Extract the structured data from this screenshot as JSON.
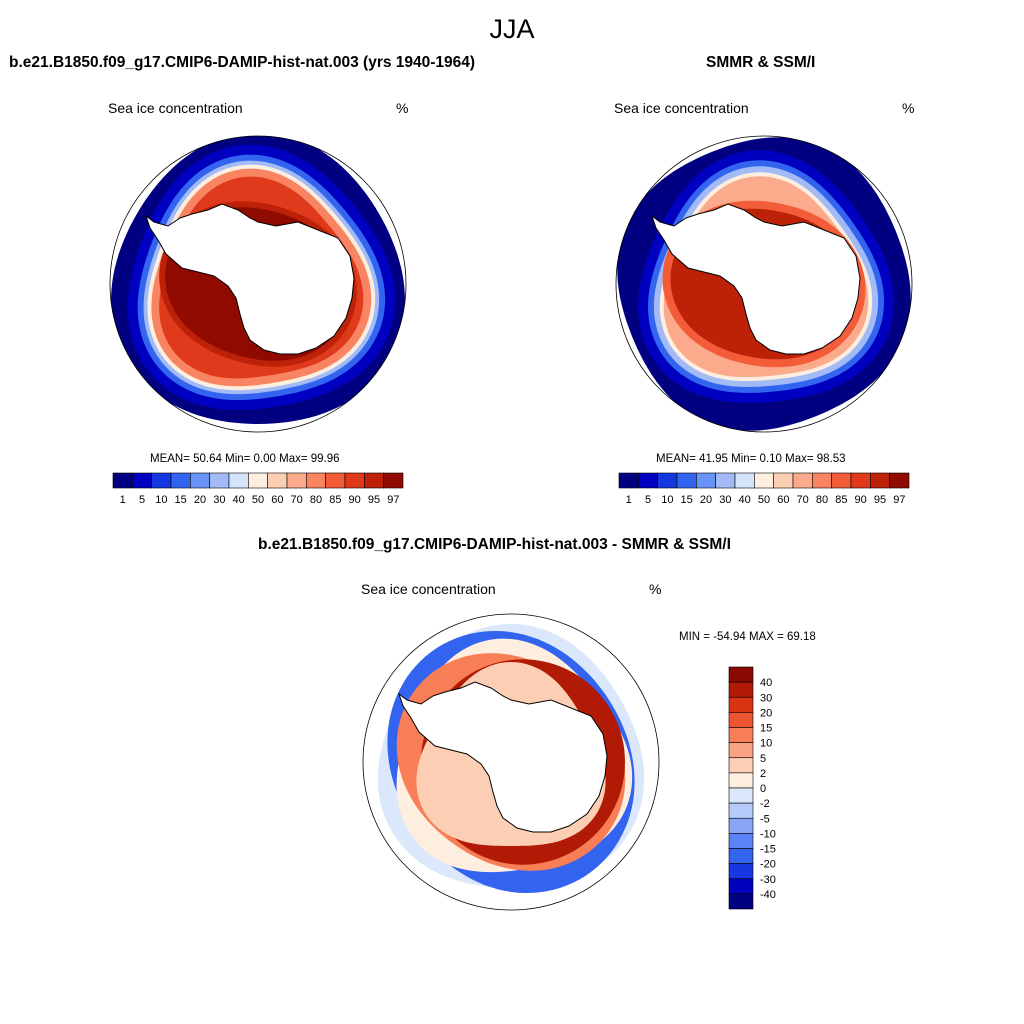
{
  "title": "JJA",
  "colors": [
    "#000080",
    "#0000c0",
    "#1437e0",
    "#3264f0",
    "#6a93f7",
    "#a2bbf7",
    "#d4e4fb",
    "#fdeedf",
    "#fccfb4",
    "#fbaa8b",
    "#f98462",
    "#f25c39",
    "#e03a1c",
    "#bd2108",
    "#900a00"
  ],
  "colors_diff": [
    "#000080",
    "#0000bf",
    "#1837e2",
    "#3264f0",
    "#5c84f6",
    "#8aa7f7",
    "#b5cbf9",
    "#dbe8fb",
    "#fdeedf",
    "#fccfb4",
    "#fba484",
    "#f77e56",
    "#ee5430",
    "#d83414",
    "#b11a04",
    "#8a0900"
  ],
  "panels": [
    {
      "title": "b.e21.B1850.f09_g17.CMIP6-DAMIP-hist-nat.003 (yrs 1940-1964)",
      "variable": "Sea ice concentration",
      "units": "%",
      "stats": "MEAN=  50.64  Min=   0.00  Max=  99.96",
      "colorbar_labels": [
        "1",
        "5",
        "10",
        "15",
        "20",
        "30",
        "40",
        "50",
        "60",
        "70",
        "80",
        "85",
        "90",
        "95",
        "97"
      ]
    },
    {
      "title": "SMMR & SSM/I",
      "variable": "Sea ice concentration",
      "units": "%",
      "stats": "MEAN=  41.95  Min=   0.10  Max=  98.53",
      "colorbar_labels": [
        "1",
        "5",
        "10",
        "15",
        "20",
        "30",
        "40",
        "50",
        "60",
        "70",
        "80",
        "85",
        "90",
        "95",
        "97"
      ]
    },
    {
      "title": "b.e21.B1850.f09_g17.CMIP6-DAMIP-hist-nat.003 - SMMR & SSM/I",
      "variable": "Sea ice concentration",
      "units": "%",
      "stats": "MIN = -54.94 MAX =  69.18",
      "colorbar_labels": [
        "40",
        "30",
        "20",
        "15",
        "10",
        "5",
        "2",
        "0",
        "-2",
        "-5",
        "-10",
        "-15",
        "-20",
        "-30",
        "-40"
      ]
    }
  ]
}
